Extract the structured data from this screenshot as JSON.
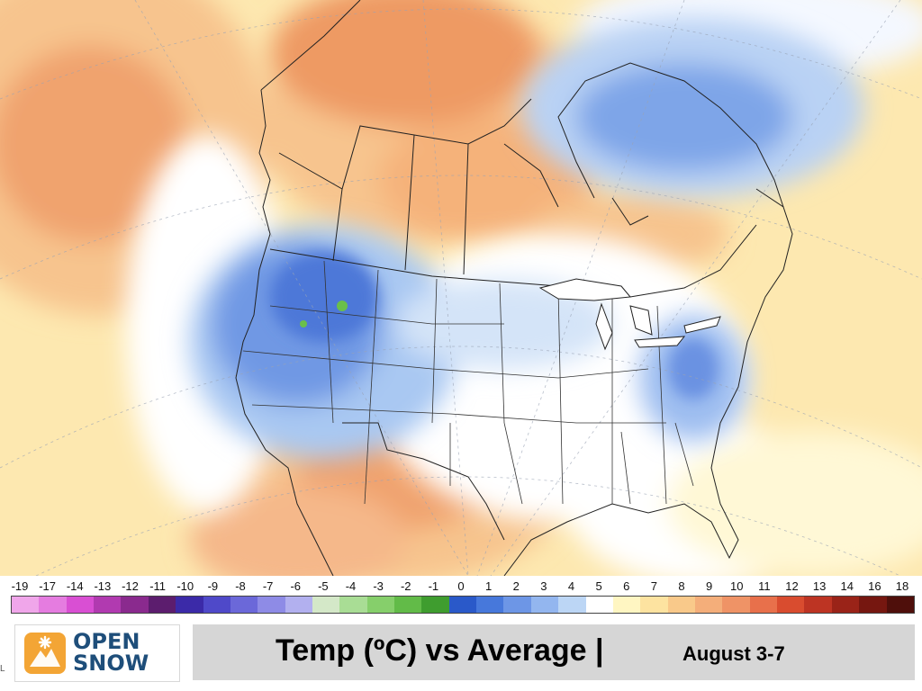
{
  "map": {
    "variable": "Temp (ºC) vs Average",
    "dates": "August 3-7",
    "color_scale": {
      "labels": [
        "-19",
        "-17",
        "-14",
        "-13",
        "-12",
        "-11",
        "-10",
        "-9",
        "-8",
        "-7",
        "-6",
        "-5",
        "-4",
        "-3",
        "-2",
        "-1",
        "0",
        "1",
        "2",
        "3",
        "4",
        "5",
        "6",
        "7",
        "8",
        "9",
        "10",
        "11",
        "12",
        "13",
        "14",
        "16",
        "18"
      ],
      "colors": [
        "#f0a6ea",
        "#e57ce0",
        "#d94fd3",
        "#b13ab0",
        "#8a2a8e",
        "#5c1d6e",
        "#3b2aa8",
        "#4f49c9",
        "#6b68d9",
        "#8e8be6",
        "#b2b0ef",
        "#d4e8c8",
        "#a9dd95",
        "#86cf6b",
        "#62bb48",
        "#3f9d2f",
        "#2a59c9",
        "#4778db",
        "#6d96e6",
        "#93b6ef",
        "#bcd6f5",
        "#ffffff",
        "#fff6c2",
        "#fde3a0",
        "#f9c98a",
        "#f4ae7a",
        "#ef9366",
        "#e8704b",
        "#d94c2f",
        "#bd3423",
        "#9a2318",
        "#761710",
        "#4f0f0b"
      ]
    },
    "regions": {
      "northeast_pacific": "warm",
      "canadian_prairies": "warm",
      "northern_rockies": "cool",
      "southwest_us": "warm",
      "northeast_canada": "cool",
      "mid_atlantic": "cool",
      "eastern_us": "near-normal"
    }
  },
  "footer": {
    "logo_line1": "OPEN",
    "logo_line2": "SNOW",
    "title": "Temp (ºC) vs Average |",
    "dates": "August 3-7"
  },
  "left_mark": "L"
}
